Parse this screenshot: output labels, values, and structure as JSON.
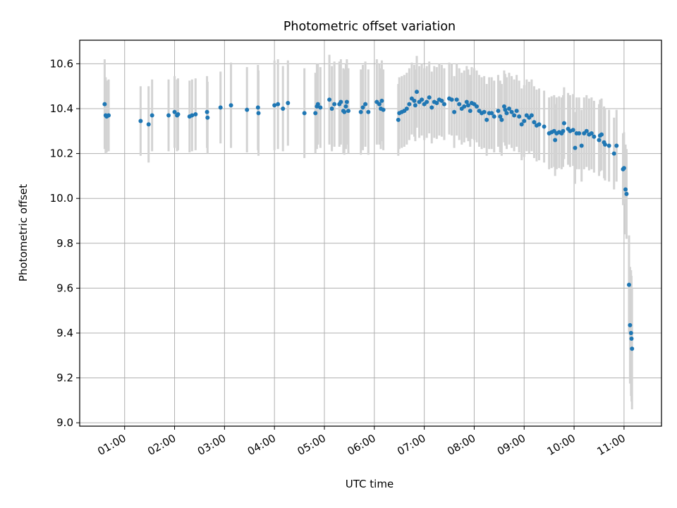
{
  "chart_data": {
    "type": "scatter",
    "title": "Photometric offset variation",
    "xlabel": "UTC time",
    "ylabel": "Photometric offset",
    "grid": true,
    "x_unit": "hours UTC",
    "xlim": [
      0.1,
      11.75
    ],
    "ylim": [
      8.985,
      10.705
    ],
    "xticks": [
      1,
      2,
      3,
      4,
      5,
      6,
      7,
      8,
      9,
      10,
      11
    ],
    "xtick_labels": [
      "01:00",
      "02:00",
      "03:00",
      "04:00",
      "05:00",
      "06:00",
      "07:00",
      "08:00",
      "09:00",
      "10:00",
      "11:00"
    ],
    "yticks": [
      9.0,
      9.2,
      9.4,
      9.6,
      9.8,
      10.0,
      10.2,
      10.4,
      10.6
    ],
    "ytick_labels": [
      "9.0",
      "9.2",
      "9.4",
      "9.6",
      "9.8",
      "10.0",
      "10.2",
      "10.4",
      "10.6"
    ],
    "colors": {
      "points": "#1f77b4",
      "error_bars": "#d3d3d3",
      "grid": "#b0b0b0",
      "axes": "#000000"
    },
    "series": [
      {
        "name": "offset",
        "x": [
          0.6,
          0.62,
          0.64,
          0.68,
          1.32,
          1.48,
          1.55,
          1.88,
          2.0,
          2.05,
          2.07,
          2.3,
          2.35,
          2.42,
          2.65,
          2.66,
          2.92,
          3.13,
          3.45,
          3.67,
          3.68,
          4.0,
          4.07,
          4.17,
          4.27,
          4.6,
          4.82,
          4.85,
          4.87,
          4.92,
          5.1,
          5.15,
          5.2,
          5.3,
          5.33,
          5.38,
          5.4,
          5.43,
          5.45,
          5.48,
          5.73,
          5.77,
          5.82,
          5.88,
          6.05,
          6.1,
          6.13,
          6.15,
          6.18,
          6.48,
          6.5,
          6.55,
          6.6,
          6.65,
          6.7,
          6.75,
          6.8,
          6.82,
          6.85,
          6.9,
          6.95,
          7.0,
          7.05,
          7.1,
          7.15,
          7.2,
          7.25,
          7.3,
          7.35,
          7.4,
          7.5,
          7.55,
          7.6,
          7.65,
          7.7,
          7.75,
          7.8,
          7.85,
          7.88,
          7.92,
          7.95,
          8.0,
          8.05,
          8.1,
          8.15,
          8.2,
          8.25,
          8.3,
          8.35,
          8.4,
          8.48,
          8.52,
          8.55,
          8.6,
          8.62,
          8.65,
          8.7,
          8.75,
          8.8,
          8.85,
          8.9,
          8.95,
          9.0,
          9.05,
          9.1,
          9.15,
          9.2,
          9.25,
          9.3,
          9.4,
          9.5,
          9.55,
          9.6,
          9.62,
          9.65,
          9.7,
          9.75,
          9.78,
          9.8,
          9.88,
          9.92,
          9.98,
          10.02,
          10.05,
          10.1,
          10.15,
          10.2,
          10.25,
          10.3,
          10.35,
          10.4,
          10.5,
          10.52,
          10.55,
          10.6,
          10.62,
          10.7,
          10.8,
          10.85,
          10.98,
          11.0,
          11.03,
          11.05,
          11.1,
          11.12,
          11.14,
          11.15,
          11.16
        ],
        "y": [
          10.42,
          10.37,
          10.365,
          10.37,
          10.345,
          10.33,
          10.37,
          10.37,
          10.385,
          10.37,
          10.375,
          10.365,
          10.37,
          10.375,
          10.385,
          10.36,
          10.405,
          10.415,
          10.395,
          10.405,
          10.38,
          10.415,
          10.42,
          10.4,
          10.425,
          10.38,
          10.38,
          10.41,
          10.42,
          10.405,
          10.44,
          10.4,
          10.42,
          10.42,
          10.43,
          10.39,
          10.385,
          10.41,
          10.43,
          10.39,
          10.385,
          10.405,
          10.42,
          10.385,
          10.43,
          10.42,
          10.4,
          10.435,
          10.395,
          10.35,
          10.38,
          10.385,
          10.39,
          10.4,
          10.42,
          10.445,
          10.435,
          10.415,
          10.475,
          10.43,
          10.44,
          10.42,
          10.43,
          10.45,
          10.405,
          10.43,
          10.425,
          10.44,
          10.435,
          10.42,
          10.445,
          10.44,
          10.385,
          10.44,
          10.42,
          10.4,
          10.41,
          10.43,
          10.415,
          10.39,
          10.425,
          10.42,
          10.41,
          10.39,
          10.38,
          10.385,
          10.35,
          10.38,
          10.38,
          10.365,
          10.39,
          10.365,
          10.35,
          10.41,
          10.395,
          10.38,
          10.4,
          10.385,
          10.37,
          10.39,
          10.365,
          10.33,
          10.345,
          10.37,
          10.36,
          10.37,
          10.34,
          10.325,
          10.33,
          10.32,
          10.29,
          10.295,
          10.3,
          10.26,
          10.29,
          10.295,
          10.29,
          10.3,
          10.335,
          10.31,
          10.3,
          10.305,
          10.225,
          10.29,
          10.29,
          10.235,
          10.29,
          10.3,
          10.285,
          10.29,
          10.275,
          10.26,
          10.28,
          10.285,
          10.25,
          10.24,
          10.235,
          10.2,
          10.235,
          10.13,
          10.135,
          10.04,
          10.02,
          9.615,
          9.435,
          9.4,
          9.375,
          9.33
        ],
        "error": [
          0.2,
          0.17,
          0.16,
          0.16,
          0.155,
          0.17,
          0.16,
          0.16,
          0.16,
          0.16,
          0.16,
          0.16,
          0.16,
          0.16,
          0.16,
          0.16,
          0.16,
          0.19,
          0.19,
          0.19,
          0.19,
          0.2,
          0.2,
          0.19,
          0.19,
          0.2,
          0.18,
          0.19,
          0.18,
          0.18,
          0.2,
          0.19,
          0.19,
          0.19,
          0.19,
          0.19,
          0.19,
          0.19,
          0.19,
          0.19,
          0.19,
          0.19,
          0.19,
          0.19,
          0.19,
          0.18,
          0.18,
          0.18,
          0.18,
          0.16,
          0.16,
          0.16,
          0.16,
          0.16,
          0.16,
          0.16,
          0.16,
          0.16,
          0.16,
          0.16,
          0.16,
          0.16,
          0.16,
          0.16,
          0.16,
          0.16,
          0.16,
          0.16,
          0.16,
          0.16,
          0.16,
          0.16,
          0.16,
          0.16,
          0.16,
          0.16,
          0.16,
          0.16,
          0.16,
          0.16,
          0.16,
          0.16,
          0.16,
          0.16,
          0.16,
          0.16,
          0.16,
          0.16,
          0.16,
          0.16,
          0.16,
          0.16,
          0.16,
          0.16,
          0.16,
          0.16,
          0.16,
          0.16,
          0.16,
          0.16,
          0.16,
          0.16,
          0.16,
          0.16,
          0.16,
          0.16,
          0.16,
          0.16,
          0.16,
          0.16,
          0.16,
          0.16,
          0.16,
          0.16,
          0.16,
          0.16,
          0.16,
          0.16,
          0.16,
          0.16,
          0.16,
          0.16,
          0.16,
          0.16,
          0.16,
          0.16,
          0.16,
          0.16,
          0.16,
          0.16,
          0.16,
          0.16,
          0.16,
          0.16,
          0.16,
          0.16,
          0.16,
          0.16,
          0.16,
          0.16,
          0.16,
          0.2,
          0.2,
          0.22,
          0.26,
          0.28,
          0.28,
          0.27
        ]
      }
    ]
  }
}
